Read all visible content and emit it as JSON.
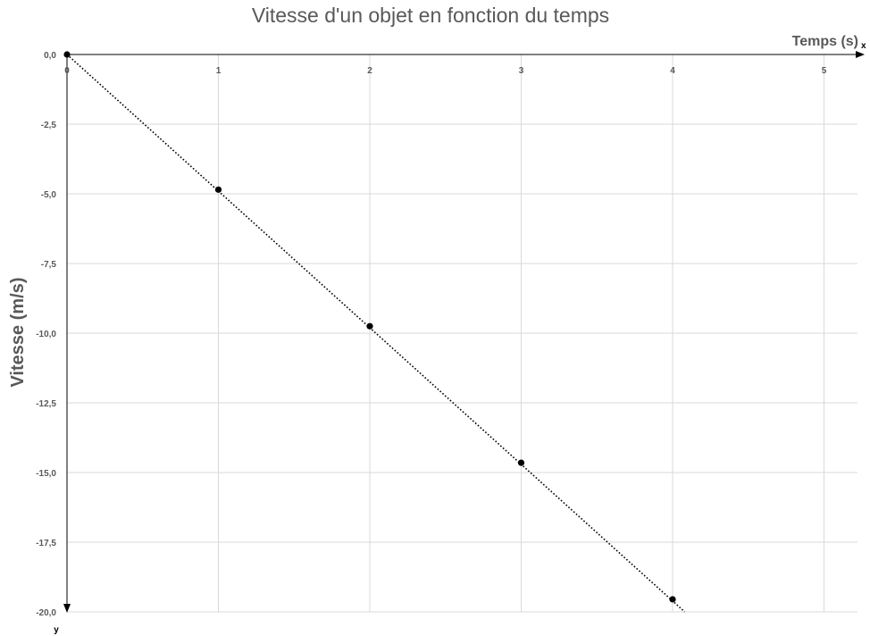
{
  "chart_data": {
    "type": "scatter",
    "title": "Vitesse d'un objet en fonction du temps",
    "xlabel": "Temps (s)",
    "ylabel": "Vitesse (m/s)",
    "x_axis_letter": "x",
    "y_axis_letter": "y",
    "xlim": [
      0,
      5.25
    ],
    "ylim": [
      -20,
      0
    ],
    "x_ticks": [
      0,
      1,
      2,
      3,
      4,
      5
    ],
    "x_tick_labels": [
      "0",
      "1",
      "2",
      "3",
      "4",
      "5"
    ],
    "y_ticks": [
      0,
      -2.5,
      -5,
      -7.5,
      -10,
      -12.5,
      -15,
      -17.5,
      -20
    ],
    "y_tick_labels": [
      "0,0",
      "-2,5",
      "-5,0",
      "-7,5",
      "-10,0",
      "-12,5",
      "-15,0",
      "-17,5",
      "-20,0"
    ],
    "grid": true,
    "series": [
      {
        "x": [
          0,
          1,
          2,
          3,
          4
        ],
        "y": [
          0,
          -4.85,
          -9.75,
          -14.65,
          -19.55
        ],
        "color": "#000000"
      }
    ],
    "trendline": {
      "style": "dotted",
      "color": "#000000",
      "x": [
        0,
        4.08
      ],
      "y": [
        0,
        -20
      ]
    }
  }
}
